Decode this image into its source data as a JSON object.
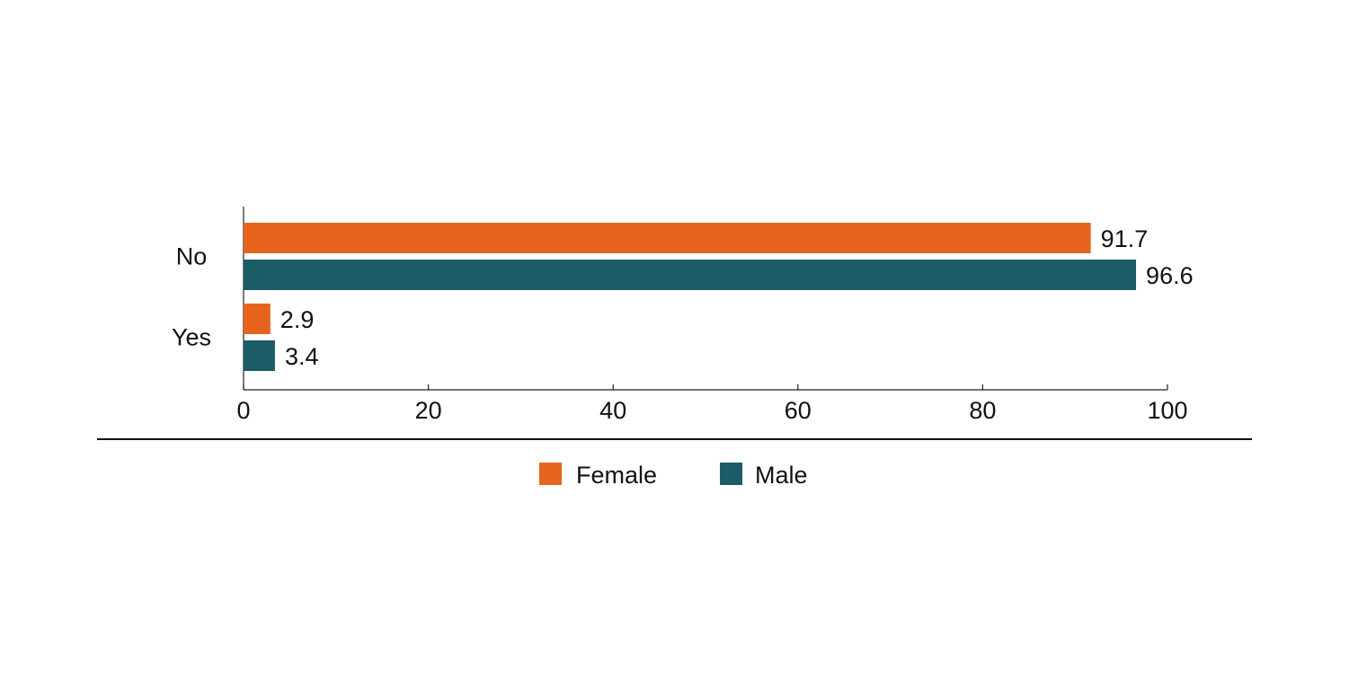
{
  "chart_data": {
    "type": "bar",
    "orientation": "horizontal",
    "categories": [
      "No",
      "Yes"
    ],
    "series": [
      {
        "name": "Female",
        "values": [
          91.7,
          2.9
        ],
        "labels": [
          "91.7",
          "2.9"
        ],
        "color": "#E8641E"
      },
      {
        "name": "Male",
        "values": [
          96.6,
          3.4
        ],
        "labels": [
          "96.6",
          "3.4"
        ],
        "color": "#1B5C66"
      }
    ],
    "xlim": [
      0,
      100
    ],
    "xticks": [
      0,
      20,
      40,
      60,
      80,
      100
    ],
    "xtick_labels": [
      "0",
      "20",
      "40",
      "60",
      "80",
      "100"
    ],
    "grid": false,
    "legend_position": "bottom-center"
  }
}
